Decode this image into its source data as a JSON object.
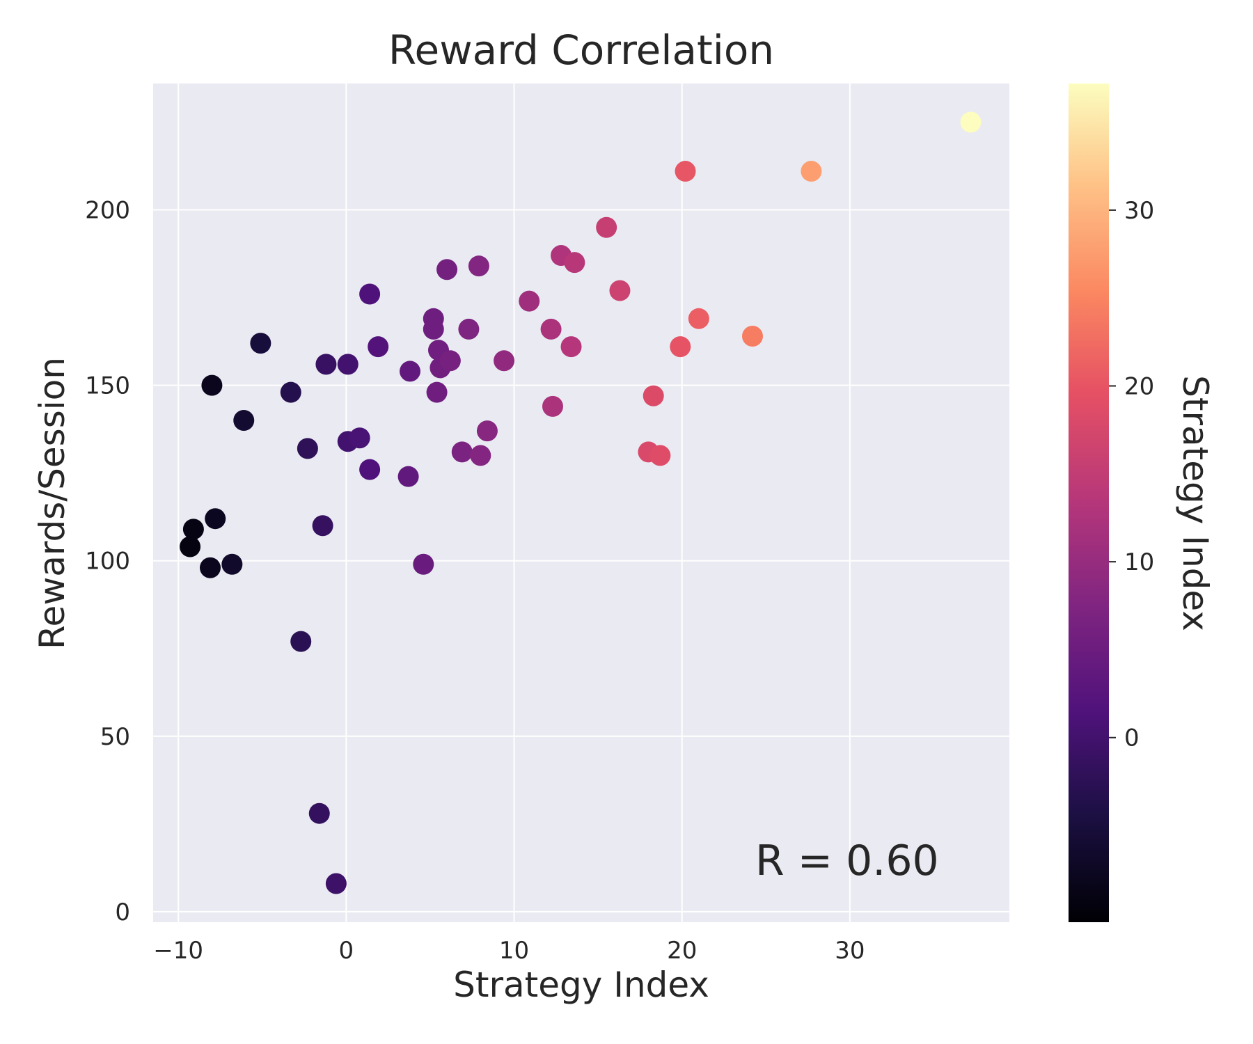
{
  "chart_data": {
    "type": "scatter",
    "title": "Reward Correlation",
    "xlabel": "Strategy Index",
    "ylabel": "Rewards/Session",
    "colorbar_label": "Strategy Index",
    "annotation": "R = 0.60",
    "xlim": [
      -11.5,
      39.5
    ],
    "ylim": [
      -3,
      236
    ],
    "xticks": [
      -10,
      0,
      10,
      20,
      30
    ],
    "xtick_labels": [
      "−10",
      "0",
      "10",
      "20",
      "30"
    ],
    "yticks": [
      0,
      50,
      100,
      150,
      200
    ],
    "ytick_labels": [
      "0",
      "50",
      "100",
      "150",
      "200"
    ],
    "color_range": [
      -10.5,
      37.2
    ],
    "colorbar_ticks": [
      0,
      10,
      20,
      30
    ],
    "colorbar_tick_labels": [
      "0",
      "10",
      "20",
      "30"
    ],
    "colormap": "magma",
    "grid": true,
    "background": "#eaeaf2",
    "points": [
      {
        "x": -9.3,
        "y": 104
      },
      {
        "x": -9.1,
        "y": 109
      },
      {
        "x": -8.1,
        "y": 98
      },
      {
        "x": -8.0,
        "y": 150
      },
      {
        "x": -7.8,
        "y": 112
      },
      {
        "x": -6.8,
        "y": 99
      },
      {
        "x": -6.1,
        "y": 140
      },
      {
        "x": -5.1,
        "y": 162
      },
      {
        "x": -3.3,
        "y": 148
      },
      {
        "x": -2.7,
        "y": 77
      },
      {
        "x": -2.3,
        "y": 132
      },
      {
        "x": -1.6,
        "y": 28
      },
      {
        "x": -1.4,
        "y": 110
      },
      {
        "x": -1.2,
        "y": 156
      },
      {
        "x": -0.6,
        "y": 8
      },
      {
        "x": 0.1,
        "y": 156
      },
      {
        "x": 0.1,
        "y": 134
      },
      {
        "x": 0.8,
        "y": 135
      },
      {
        "x": 1.4,
        "y": 176
      },
      {
        "x": 1.4,
        "y": 126
      },
      {
        "x": 1.9,
        "y": 161
      },
      {
        "x": 3.7,
        "y": 124
      },
      {
        "x": 3.8,
        "y": 154
      },
      {
        "x": 4.6,
        "y": 99
      },
      {
        "x": 5.2,
        "y": 169
      },
      {
        "x": 5.2,
        "y": 166
      },
      {
        "x": 5.4,
        "y": 148
      },
      {
        "x": 5.5,
        "y": 160
      },
      {
        "x": 5.6,
        "y": 155
      },
      {
        "x": 6.0,
        "y": 183
      },
      {
        "x": 6.2,
        "y": 157
      },
      {
        "x": 6.9,
        "y": 131
      },
      {
        "x": 7.3,
        "y": 166
      },
      {
        "x": 7.9,
        "y": 184
      },
      {
        "x": 8.0,
        "y": 130
      },
      {
        "x": 8.4,
        "y": 137
      },
      {
        "x": 9.4,
        "y": 157
      },
      {
        "x": 10.9,
        "y": 174
      },
      {
        "x": 12.2,
        "y": 166
      },
      {
        "x": 12.3,
        "y": 144
      },
      {
        "x": 12.8,
        "y": 187
      },
      {
        "x": 13.4,
        "y": 161
      },
      {
        "x": 13.6,
        "y": 185
      },
      {
        "x": 15.5,
        "y": 195
      },
      {
        "x": 16.3,
        "y": 177
      },
      {
        "x": 18.0,
        "y": 131
      },
      {
        "x": 18.3,
        "y": 147
      },
      {
        "x": 18.7,
        "y": 130
      },
      {
        "x": 19.9,
        "y": 161
      },
      {
        "x": 20.2,
        "y": 211
      },
      {
        "x": 21.0,
        "y": 169
      },
      {
        "x": 24.2,
        "y": 164
      },
      {
        "x": 27.7,
        "y": 211
      },
      {
        "x": 37.2,
        "y": 225
      }
    ]
  }
}
